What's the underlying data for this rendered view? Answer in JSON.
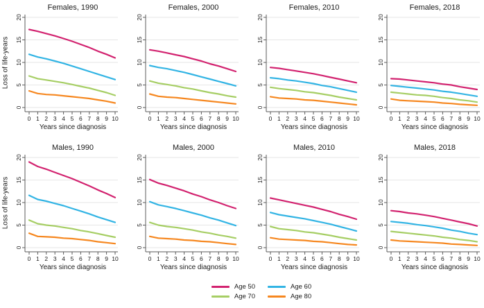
{
  "figure": {
    "y_axis_title": "Loss of life-years",
    "x_axis_title": "Years since diagnosis",
    "x_ticks": [
      0,
      1,
      2,
      3,
      4,
      5,
      6,
      7,
      8,
      9,
      10
    ],
    "y_ticks": [
      0,
      5,
      10,
      15,
      20
    ],
    "xlim": [
      0,
      10
    ],
    "ylim": [
      0,
      20
    ],
    "grid": true,
    "grid_color": "#e6e6e6",
    "axis_color": "#5a5a5a",
    "legend_position": "bottom-center"
  },
  "legend": {
    "items": [
      {
        "label": "Age 50",
        "color": "#d2226f"
      },
      {
        "label": "Age 60",
        "color": "#32b4e4"
      },
      {
        "label": "Age 70",
        "color": "#a6ce64"
      },
      {
        "label": "Age 80",
        "color": "#f6871f"
      }
    ]
  },
  "chart_data": [
    {
      "type": "line",
      "title": "Females, 1990",
      "x": [
        0,
        1,
        2,
        3,
        4,
        5,
        6,
        7,
        8,
        9,
        10
      ],
      "series": [
        {
          "name": "Age 50",
          "values": [
            17.3,
            16.9,
            16.4,
            15.9,
            15.3,
            14.7,
            14.0,
            13.3,
            12.5,
            11.8,
            11.0
          ]
        },
        {
          "name": "Age 60",
          "values": [
            11.8,
            11.2,
            10.8,
            10.3,
            9.8,
            9.2,
            8.6,
            8.0,
            7.4,
            6.8,
            6.2
          ]
        },
        {
          "name": "Age 70",
          "values": [
            7.0,
            6.4,
            6.1,
            5.8,
            5.5,
            5.1,
            4.7,
            4.3,
            3.8,
            3.3,
            2.7
          ]
        },
        {
          "name": "Age 80",
          "values": [
            3.7,
            3.1,
            2.9,
            2.8,
            2.6,
            2.4,
            2.2,
            2.0,
            1.7,
            1.4,
            1.0
          ]
        }
      ]
    },
    {
      "type": "line",
      "title": "Females, 2000",
      "x": [
        0,
        1,
        2,
        3,
        4,
        5,
        6,
        7,
        8,
        9,
        10
      ],
      "series": [
        {
          "name": "Age 50",
          "values": [
            12.8,
            12.5,
            12.1,
            11.7,
            11.3,
            10.8,
            10.3,
            9.7,
            9.2,
            8.6,
            8.0
          ]
        },
        {
          "name": "Age 60",
          "values": [
            9.3,
            8.9,
            8.6,
            8.2,
            7.8,
            7.3,
            6.8,
            6.3,
            5.8,
            5.3,
            4.8
          ]
        },
        {
          "name": "Age 70",
          "values": [
            5.9,
            5.4,
            5.1,
            4.8,
            4.4,
            4.1,
            3.7,
            3.3,
            3.0,
            2.6,
            2.3
          ]
        },
        {
          "name": "Age 80",
          "values": [
            3.0,
            2.5,
            2.3,
            2.2,
            2.0,
            1.8,
            1.6,
            1.4,
            1.2,
            1.0,
            0.8
          ]
        }
      ]
    },
    {
      "type": "line",
      "title": "Females, 2010",
      "x": [
        0,
        1,
        2,
        3,
        4,
        5,
        6,
        7,
        8,
        9,
        10
      ],
      "series": [
        {
          "name": "Age 50",
          "values": [
            8.9,
            8.7,
            8.4,
            8.1,
            7.8,
            7.5,
            7.1,
            6.7,
            6.3,
            5.9,
            5.5
          ]
        },
        {
          "name": "Age 60",
          "values": [
            6.6,
            6.4,
            6.1,
            5.9,
            5.6,
            5.3,
            4.9,
            4.6,
            4.2,
            3.8,
            3.4
          ]
        },
        {
          "name": "Age 70",
          "values": [
            4.5,
            4.2,
            4.0,
            3.8,
            3.5,
            3.3,
            3.0,
            2.7,
            2.3,
            2.0,
            1.7
          ]
        },
        {
          "name": "Age 80",
          "values": [
            2.4,
            2.1,
            2.0,
            1.9,
            1.7,
            1.6,
            1.4,
            1.2,
            1.0,
            0.8,
            0.6
          ]
        }
      ]
    },
    {
      "type": "line",
      "title": "Females, 2018",
      "x": [
        0,
        1,
        2,
        3,
        4,
        5,
        6,
        7,
        8,
        9,
        10
      ],
      "series": [
        {
          "name": "Age 50",
          "values": [
            6.4,
            6.3,
            6.1,
            5.9,
            5.7,
            5.5,
            5.2,
            5.0,
            4.6,
            4.3,
            4.0
          ]
        },
        {
          "name": "Age 60",
          "values": [
            4.9,
            4.7,
            4.5,
            4.3,
            4.1,
            3.9,
            3.6,
            3.4,
            3.1,
            2.8,
            2.5
          ]
        },
        {
          "name": "Age 70",
          "values": [
            3.4,
            3.2,
            3.0,
            2.8,
            2.7,
            2.5,
            2.2,
            2.0,
            1.7,
            1.5,
            1.2
          ]
        },
        {
          "name": "Age 80",
          "values": [
            1.9,
            1.6,
            1.5,
            1.4,
            1.3,
            1.2,
            1.0,
            0.9,
            0.7,
            0.6,
            0.5
          ]
        }
      ]
    },
    {
      "type": "line",
      "title": "Males, 1990",
      "x": [
        0,
        1,
        2,
        3,
        4,
        5,
        6,
        7,
        8,
        9,
        10
      ],
      "series": [
        {
          "name": "Age 50",
          "values": [
            19.0,
            18.0,
            17.4,
            16.7,
            16.0,
            15.3,
            14.5,
            13.7,
            12.8,
            12.0,
            11.1
          ]
        },
        {
          "name": "Age 60",
          "values": [
            11.6,
            10.7,
            10.3,
            9.8,
            9.3,
            8.7,
            8.1,
            7.5,
            6.8,
            6.2,
            5.6
          ]
        },
        {
          "name": "Age 70",
          "values": [
            6.1,
            5.3,
            5.0,
            4.8,
            4.5,
            4.2,
            3.8,
            3.5,
            3.1,
            2.7,
            2.3
          ]
        },
        {
          "name": "Age 80",
          "values": [
            3.2,
            2.5,
            2.4,
            2.3,
            2.1,
            2.0,
            1.8,
            1.6,
            1.3,
            1.1,
            0.9
          ]
        }
      ]
    },
    {
      "type": "line",
      "title": "Males, 2000",
      "x": [
        0,
        1,
        2,
        3,
        4,
        5,
        6,
        7,
        8,
        9,
        10
      ],
      "series": [
        {
          "name": "Age 50",
          "values": [
            15.1,
            14.3,
            13.8,
            13.2,
            12.6,
            11.9,
            11.3,
            10.6,
            10.0,
            9.3,
            8.7
          ]
        },
        {
          "name": "Age 60",
          "values": [
            10.2,
            9.5,
            9.1,
            8.7,
            8.2,
            7.7,
            7.2,
            6.6,
            6.1,
            5.5,
            4.9
          ]
        },
        {
          "name": "Age 70",
          "values": [
            5.6,
            5.0,
            4.7,
            4.5,
            4.2,
            3.9,
            3.5,
            3.2,
            2.8,
            2.5,
            2.1
          ]
        },
        {
          "name": "Age 80",
          "values": [
            2.5,
            2.1,
            2.0,
            1.9,
            1.7,
            1.6,
            1.4,
            1.3,
            1.1,
            0.9,
            0.7
          ]
        }
      ]
    },
    {
      "type": "line",
      "title": "Males, 2010",
      "x": [
        0,
        1,
        2,
        3,
        4,
        5,
        6,
        7,
        8,
        9,
        10
      ],
      "series": [
        {
          "name": "Age 50",
          "values": [
            11.0,
            10.6,
            10.2,
            9.8,
            9.4,
            9.0,
            8.5,
            8.0,
            7.4,
            6.9,
            6.3
          ]
        },
        {
          "name": "Age 60",
          "values": [
            7.8,
            7.3,
            7.0,
            6.7,
            6.4,
            6.0,
            5.6,
            5.2,
            4.7,
            4.2,
            3.7
          ]
        },
        {
          "name": "Age 70",
          "values": [
            4.7,
            4.2,
            4.0,
            3.8,
            3.5,
            3.3,
            3.0,
            2.7,
            2.3,
            2.0,
            1.7
          ]
        },
        {
          "name": "Age 80",
          "values": [
            2.2,
            1.9,
            1.8,
            1.7,
            1.6,
            1.4,
            1.3,
            1.1,
            0.9,
            0.7,
            0.6
          ]
        }
      ]
    },
    {
      "type": "line",
      "title": "Males, 2018",
      "x": [
        0,
        1,
        2,
        3,
        4,
        5,
        6,
        7,
        8,
        9,
        10
      ],
      "series": [
        {
          "name": "Age 50",
          "values": [
            8.2,
            8.0,
            7.7,
            7.5,
            7.2,
            6.9,
            6.5,
            6.1,
            5.7,
            5.3,
            4.8
          ]
        },
        {
          "name": "Age 60",
          "values": [
            5.8,
            5.6,
            5.4,
            5.1,
            4.9,
            4.6,
            4.3,
            3.9,
            3.6,
            3.2,
            2.9
          ]
        },
        {
          "name": "Age 70",
          "values": [
            3.6,
            3.4,
            3.2,
            3.0,
            2.8,
            2.6,
            2.3,
            2.1,
            1.8,
            1.6,
            1.3
          ]
        },
        {
          "name": "Age 80",
          "values": [
            1.7,
            1.5,
            1.4,
            1.3,
            1.2,
            1.1,
            1.0,
            0.8,
            0.7,
            0.6,
            0.5
          ]
        }
      ]
    }
  ]
}
